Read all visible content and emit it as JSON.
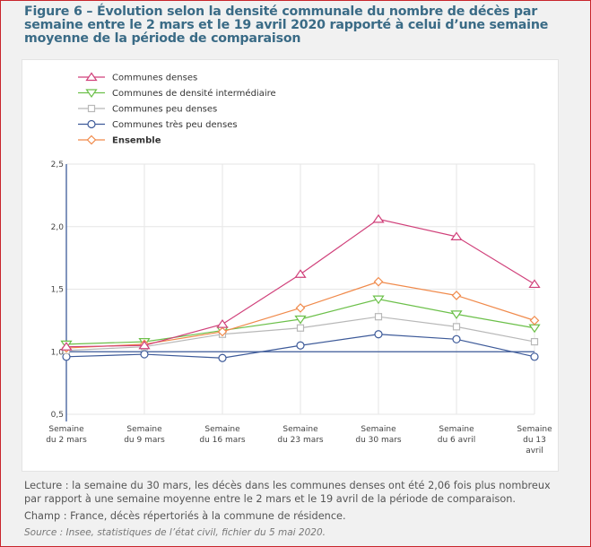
{
  "title": "Figure 6 – Évolution selon la densité communale du nombre de décès par semaine entre le 2 mars et le 19 avril 2020 rapporté à celui d’une semaine moyenne de la période de comparaison",
  "chart_data": {
    "type": "line",
    "categories": [
      "Semaine du 2 mars",
      "Semaine du 9 mars",
      "Semaine du 16 mars",
      "Semaine du 23 mars",
      "Semaine du 30 mars",
      "Semaine du 6 avril",
      "Semaine du 13 avril"
    ],
    "ylim": [
      0.5,
      2.5
    ],
    "yticks": [
      "0,5",
      "1,0",
      "1,5",
      "2,0",
      "2,5"
    ],
    "ytick_values": [
      0.5,
      1.0,
      1.5,
      2.0,
      2.5
    ],
    "reference_line": 1.0,
    "grid": true,
    "legend_position": "top-left",
    "series": [
      {
        "name": "Communes denses",
        "color": "#d0407a",
        "marker": "triangle-up",
        "values": [
          1.04,
          1.05,
          1.22,
          1.62,
          2.06,
          1.92,
          1.54
        ]
      },
      {
        "name": "Communes de densité intermédiaire",
        "color": "#6cc04a",
        "marker": "triangle-down",
        "values": [
          1.06,
          1.08,
          1.17,
          1.26,
          1.42,
          1.3,
          1.19
        ]
      },
      {
        "name": "Communes peu denses",
        "color": "#b8b8b8",
        "marker": "square",
        "values": [
          1.01,
          1.04,
          1.14,
          1.19,
          1.28,
          1.2,
          1.08
        ]
      },
      {
        "name": "Communes très peu denses",
        "color": "#3d5a99",
        "marker": "circle",
        "values": [
          0.96,
          0.98,
          0.95,
          1.05,
          1.14,
          1.1,
          0.96
        ]
      },
      {
        "name": "Ensemble",
        "color": "#f08a4b",
        "marker": "diamond",
        "bold": true,
        "values": [
          1.03,
          1.06,
          1.16,
          1.35,
          1.56,
          1.45,
          1.25
        ]
      }
    ]
  },
  "notes": {
    "lecture": "Lecture : la semaine du 30 mars, les décès dans les communes denses ont été 2,06 fois plus nombreux par rapport à une semaine moyenne entre le 2 mars et le 19 avril de la période de comparaison.",
    "champ": "Champ : France, décès répertoriés à la commune de résidence.",
    "source": "Source : Insee, statistiques de l’état civil, fichier du 5 mai 2020."
  }
}
